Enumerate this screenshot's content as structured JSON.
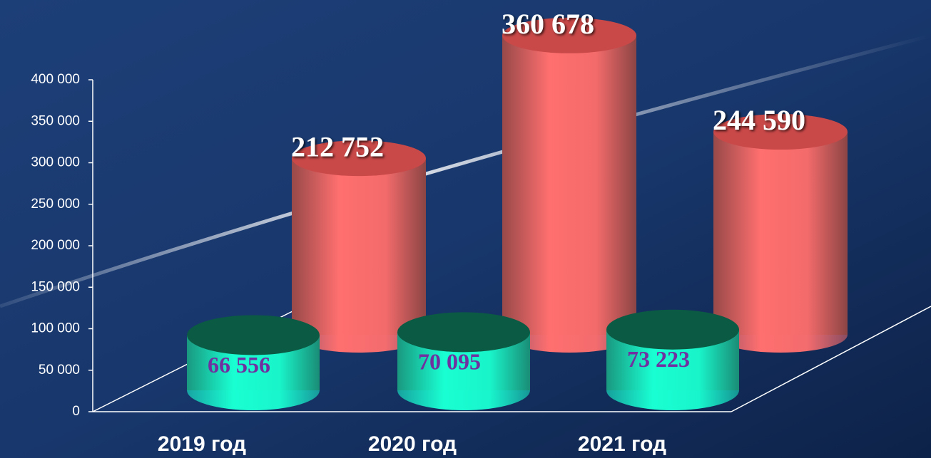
{
  "chart_data": {
    "type": "bar",
    "categories": [
      "2019 год",
      "2020 год",
      "2021 год"
    ],
    "series": [
      {
        "color": "#ff6f6f",
        "values": [
          212752,
          360678,
          244590
        ],
        "value_labels": [
          "212 752",
          "360 678",
          "244 590"
        ]
      },
      {
        "color": "#19ffd2",
        "values": [
          66556,
          70095,
          73223
        ],
        "value_labels": [
          "66 556",
          "70 095",
          "73 223"
        ]
      }
    ],
    "ylim": [
      0,
      400000
    ],
    "yticks": [
      0,
      {
        "value": 50000,
        "label": "50 000"
      },
      {
        "value": 100000,
        "label": "100 000"
      },
      {
        "value": 150000,
        "label": "150 000"
      },
      {
        "value": 200000,
        "label": "200 000"
      },
      {
        "value": 250000,
        "label": "250 000"
      },
      {
        "value": 300000,
        "label": "300 000"
      },
      {
        "value": 350000,
        "label": "350 000"
      },
      {
        "value": 400000,
        "label": "400 000"
      }
    ]
  }
}
